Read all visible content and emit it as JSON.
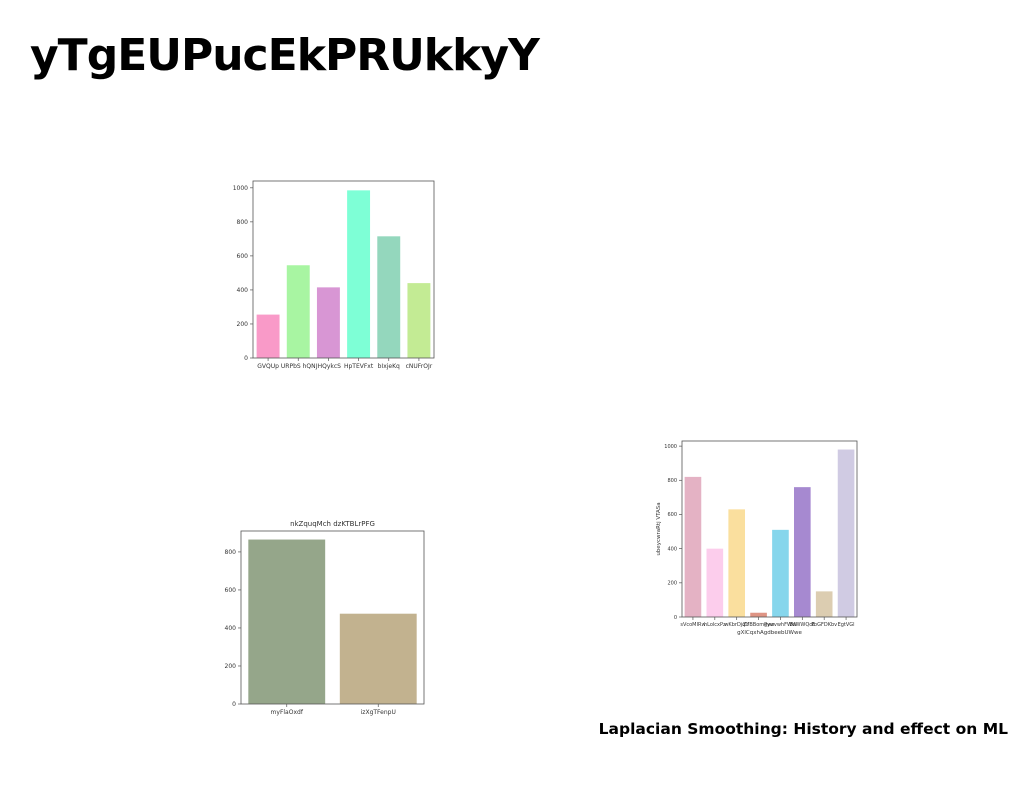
{
  "slide": {
    "title": "yTgEUPucEkPRUkkyY",
    "caption": "Laplacian Smoothing: History and effect on ML"
  },
  "chart_data": [
    {
      "type": "bar",
      "title": "",
      "xlabel": "",
      "ylabel": "",
      "categories": [
        "GVQUp",
        "URPbS hQN",
        "JHQykcS",
        "HpTEVFxt",
        "bIxjeKq",
        "cNUFrOJr"
      ],
      "values": [
        255,
        545,
        415,
        985,
        715,
        440
      ],
      "colors": [
        "#f99ac8",
        "#a8f5a2",
        "#d896d4",
        "#7effd6",
        "#94d7bd",
        "#c3eb94"
      ],
      "ylim": [
        0,
        1040
      ],
      "yticks": [
        0,
        200,
        400,
        600,
        800,
        1000
      ]
    },
    {
      "type": "bar",
      "title": "nkZquqMch dzKTBLrPFG",
      "xlabel": "",
      "ylabel": "",
      "categories": [
        "myFlaOxdf",
        "izXgTFenpU"
      ],
      "values": [
        865,
        475
      ],
      "colors": [
        "#95a68a",
        "#c2b28f"
      ],
      "ylim": [
        0,
        910
      ],
      "yticks": [
        0,
        200,
        400,
        600,
        800
      ]
    },
    {
      "type": "bar",
      "title": "",
      "xlabel": "gXlCqxhAgdbeebUWwe",
      "ylabel": "ubeycwraRtj VTASa",
      "categories": [
        "sVcoMIRw",
        "hLolcxPz",
        "wKbrDjqU",
        "ZYBBomPyw",
        "gwsvwhFWW",
        "BzWWQcE",
        "PoGFDKbv",
        "EgtVGl"
      ],
      "values": [
        820,
        400,
        630,
        25,
        510,
        760,
        150,
        980
      ],
      "colors": [
        "#e4b2c4",
        "#fccdec",
        "#fadf9e",
        "#de9484",
        "#86d6ec",
        "#a689d0",
        "#dccdb1",
        "#d0cbe3"
      ],
      "ylim": [
        0,
        1030
      ],
      "yticks": [
        0,
        200,
        400,
        600,
        800,
        1000
      ]
    }
  ]
}
